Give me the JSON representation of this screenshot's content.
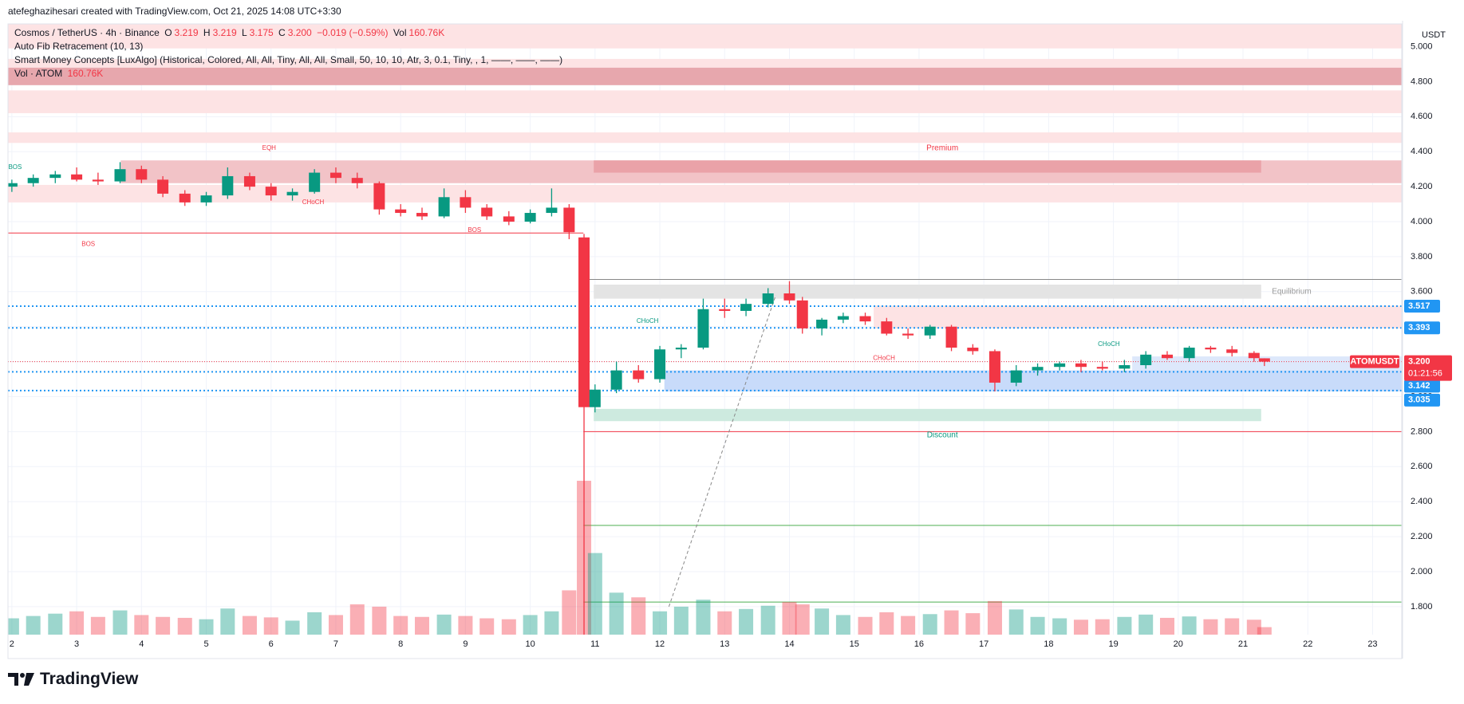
{
  "header": "atefeghazihesari created with TradingView.com, Oct 21, 2025 14:08 UTC+3:30",
  "legend": {
    "symbol": "Cosmos / TetherUS · 4h · Binance",
    "o_key": "O",
    "o": "3.219",
    "h_key": "H",
    "h": "3.219",
    "l_key": "L",
    "l": "3.175",
    "c_key": "C",
    "c": "3.200",
    "change": "−0.019 (−0.59%)",
    "vol_key": "Vol",
    "vol": "160.76K",
    "fib": "Auto Fib Retracement (10, 13)",
    "smc": "Smart Money Concepts [LuxAlgo] (Historical, Colored, All, All, Tiny, All, All, Small, 50, 10, 10, Atr, 3, 0.1, Tiny, , 1, ——, ——, ——)",
    "vol_line": "Vol · ATOM",
    "vol_line_value": "160.76K"
  },
  "footer": "TradingView",
  "chart_data": {
    "type": "candlestick",
    "currency": "USDT",
    "up_color": "#089981",
    "down_color": "#f23645",
    "xlim": [
      1.94,
      23.45
    ],
    "ylim": [
      1.64,
      5.13
    ],
    "xticks": [
      2,
      3,
      4,
      5,
      6,
      7,
      8,
      9,
      10,
      11,
      12,
      13,
      14,
      15,
      16,
      17,
      18,
      19,
      20,
      21,
      22,
      23
    ],
    "yticks": [
      {
        "value": 1.8,
        "label": "1.800"
      },
      {
        "value": 2.0,
        "label": "2.000"
      },
      {
        "value": 2.2,
        "label": "2.200"
      },
      {
        "value": 2.4,
        "label": "2.400"
      },
      {
        "value": 2.6,
        "label": "2.600"
      },
      {
        "value": 2.8,
        "label": "2.800"
      },
      {
        "value": 3.0,
        "label": "3.000"
      },
      {
        "value": 3.2,
        "label": "3.200"
      },
      {
        "value": 3.4,
        "label": "3.400"
      },
      {
        "value": 3.6,
        "label": "3.600"
      },
      {
        "value": 3.8,
        "label": "3.800"
      },
      {
        "value": 4.0,
        "label": "4.000"
      },
      {
        "value": 4.2,
        "label": "4.200"
      },
      {
        "value": 4.4,
        "label": "4.400"
      },
      {
        "value": 4.6,
        "label": "4.600"
      },
      {
        "value": 4.8,
        "label": "4.800"
      },
      {
        "value": 5.0,
        "label": "5.000"
      }
    ],
    "grid": true,
    "x": [
      2.0,
      2.33,
      2.67,
      3.0,
      3.33,
      3.67,
      4.0,
      4.33,
      4.67,
      5.0,
      5.33,
      5.67,
      6.0,
      6.33,
      6.67,
      7.0,
      7.33,
      7.67,
      8.0,
      8.33,
      8.67,
      9.0,
      9.33,
      9.67,
      10.0,
      10.33,
      10.6,
      10.83,
      11.0,
      11.33,
      11.67,
      12.0,
      12.33,
      12.67,
      13.0,
      13.33,
      13.67,
      14.0,
      14.2,
      14.5,
      14.83,
      15.17,
      15.5,
      15.83,
      16.17,
      16.5,
      16.83,
      17.17,
      17.5,
      17.83,
      18.17,
      18.5,
      18.83,
      19.17,
      19.5,
      19.83,
      20.17,
      20.5,
      20.83,
      21.17,
      21.33
    ],
    "open": [
      4.2,
      4.22,
      4.25,
      4.27,
      4.24,
      4.23,
      4.3,
      4.24,
      4.16,
      4.11,
      4.15,
      4.26,
      4.2,
      4.15,
      4.17,
      4.28,
      4.25,
      4.22,
      4.07,
      4.05,
      4.03,
      4.14,
      4.08,
      4.03,
      4.0,
      4.05,
      4.08,
      3.91,
      2.94,
      3.04,
      3.15,
      3.1,
      3.27,
      3.28,
      3.5,
      3.49,
      3.53,
      3.59,
      3.55,
      3.39,
      3.44,
      3.46,
      3.43,
      3.36,
      3.35,
      3.4,
      3.28,
      3.26,
      3.08,
      3.15,
      3.17,
      3.19,
      3.17,
      3.16,
      3.18,
      3.24,
      3.22,
      3.28,
      3.27,
      3.25,
      3.219
    ],
    "high": [
      4.24,
      4.27,
      4.29,
      4.31,
      4.28,
      4.34,
      4.32,
      4.26,
      4.18,
      4.17,
      4.31,
      4.28,
      4.22,
      4.19,
      4.3,
      4.31,
      4.28,
      4.23,
      4.1,
      4.08,
      4.19,
      4.18,
      4.1,
      4.06,
      4.07,
      4.19,
      4.1,
      3.93,
      3.07,
      3.2,
      3.18,
      3.29,
      3.3,
      3.56,
      3.56,
      3.56,
      3.62,
      3.66,
      3.57,
      3.45,
      3.48,
      3.48,
      3.45,
      3.39,
      3.41,
      3.41,
      3.3,
      3.27,
      3.18,
      3.19,
      3.2,
      3.21,
      3.2,
      3.21,
      3.26,
      3.26,
      3.29,
      3.29,
      3.29,
      3.26,
      3.219
    ],
    "low": [
      4.17,
      4.2,
      4.22,
      4.23,
      4.21,
      4.22,
      4.22,
      4.14,
      4.09,
      4.09,
      4.13,
      4.18,
      4.12,
      4.12,
      4.16,
      4.22,
      4.19,
      4.04,
      4.03,
      4.01,
      4.02,
      4.05,
      4.01,
      3.98,
      3.99,
      4.03,
      3.9,
      1.64,
      2.91,
      3.02,
      3.08,
      3.08,
      3.22,
      3.27,
      3.45,
      3.46,
      3.51,
      3.53,
      3.36,
      3.35,
      3.42,
      3.41,
      3.35,
      3.33,
      3.33,
      3.26,
      3.24,
      3.03,
      3.06,
      3.12,
      3.15,
      3.14,
      3.15,
      3.14,
      3.16,
      3.21,
      3.2,
      3.25,
      3.23,
      3.2,
      3.175
    ],
    "close": [
      4.22,
      4.25,
      4.27,
      4.24,
      4.23,
      4.3,
      4.24,
      4.16,
      4.11,
      4.15,
      4.26,
      4.2,
      4.15,
      4.17,
      4.28,
      4.25,
      4.22,
      4.07,
      4.05,
      4.03,
      4.14,
      4.08,
      4.03,
      4.0,
      4.05,
      4.08,
      3.94,
      2.94,
      3.04,
      3.15,
      3.1,
      3.27,
      3.28,
      3.5,
      3.49,
      3.53,
      3.59,
      3.55,
      3.39,
      3.44,
      3.46,
      3.43,
      3.36,
      3.35,
      3.4,
      3.28,
      3.26,
      3.08,
      3.15,
      3.17,
      3.19,
      3.17,
      3.16,
      3.18,
      3.24,
      3.22,
      3.28,
      3.27,
      3.25,
      3.22,
      3.2
    ],
    "volume": [
      350,
      400,
      450,
      500,
      380,
      520,
      420,
      380,
      360,
      330,
      560,
      400,
      370,
      300,
      480,
      420,
      650,
      600,
      400,
      380,
      430,
      400,
      350,
      330,
      420,
      500,
      950,
      3300,
      1750,
      900,
      800,
      500,
      600,
      750,
      500,
      550,
      620,
      700,
      650,
      560,
      420,
      380,
      480,
      400,
      440,
      520,
      460,
      720,
      540,
      380,
      350,
      320,
      330,
      380,
      430,
      360,
      390,
      330,
      350,
      320,
      160.76
    ],
    "zones": [
      {
        "x": [
          1.94,
          23.45
        ],
        "y": [
          4.99,
          5.13
        ],
        "color": "#fde3e4"
      },
      {
        "x": [
          1.94,
          23.45
        ],
        "y": [
          4.88,
          4.93
        ],
        "color": "#fde3e4"
      },
      {
        "x": [
          1.94,
          23.45
        ],
        "y": [
          4.78,
          4.88
        ],
        "color": "#e7a7ad"
      },
      {
        "x": [
          1.94,
          23.45
        ],
        "y": [
          4.62,
          4.75
        ],
        "color": "#fde3e4"
      },
      {
        "x": [
          1.94,
          23.45
        ],
        "y": [
          4.45,
          4.51
        ],
        "color": "#fde3e4"
      },
      {
        "x": [
          3.68,
          23.45
        ],
        "y": [
          4.22,
          4.35
        ],
        "color": "#f2c3c7"
      },
      {
        "x": [
          10.98,
          21.28
        ],
        "y": [
          4.28,
          4.35
        ],
        "color": "#eaa2a8"
      },
      {
        "x": [
          1.94,
          23.45
        ],
        "y": [
          4.11,
          4.21
        ],
        "color": "#fde3e4"
      },
      {
        "x": [
          10.98,
          21.28
        ],
        "y": [
          3.56,
          3.64
        ],
        "color": "#e4e4e4"
      },
      {
        "x": [
          15.3,
          23.45
        ],
        "y": [
          3.39,
          3.52
        ],
        "color": "#fde3e4"
      },
      {
        "x": [
          19.29,
          23.45
        ],
        "y": [
          3.15,
          3.23
        ],
        "color": "#dde8fb"
      },
      {
        "x": [
          12.07,
          23.45
        ],
        "y": [
          3.03,
          3.15
        ],
        "color": "#c8dbfa"
      },
      {
        "x": [
          10.98,
          21.28
        ],
        "y": [
          2.86,
          2.93
        ],
        "color": "#cdeadf"
      }
    ],
    "lines": [
      {
        "x": [
          1.94,
          10.82
        ],
        "y": [
          3.935,
          3.935
        ],
        "color": "#f23645"
      },
      {
        "x": [
          10.82,
          23.45
        ],
        "y": [
          3.67,
          3.67
        ],
        "color": "#888888"
      },
      {
        "x": [
          10.82,
          23.45
        ],
        "y": [
          2.8,
          2.8
        ],
        "color": "#f23645"
      },
      {
        "x": [
          10.82,
          23.45
        ],
        "y": [
          2.264,
          2.264
        ],
        "color": "#4caf50"
      },
      {
        "x": [
          10.82,
          23.45
        ],
        "y": [
          1.826,
          1.826
        ],
        "color": "#4caf50"
      },
      {
        "x": [
          12.14,
          13.79
        ],
        "y": [
          1.8,
          3.58
        ],
        "color": "#888888",
        "dash": true
      }
    ],
    "annotations": [
      {
        "text": "Premium",
        "color": "#f23645"
      },
      {
        "text": "Equilibrium",
        "color": "#999999"
      },
      {
        "text": "Discount",
        "color": "#089981"
      },
      {
        "text": "BOS",
        "color": "#f23645"
      },
      {
        "text": "BOS",
        "color": "#f23645"
      },
      {
        "text": "BOS",
        "color": "#089981"
      },
      {
        "text": "EQH",
        "color": "#f23645"
      },
      {
        "text": "CHoCH",
        "color": "#f23645"
      },
      {
        "text": "CHoCH",
        "color": "#089981"
      },
      {
        "text": "CHoCH",
        "color": "#f23645"
      },
      {
        "text": "CHoCH",
        "color": "#089981"
      }
    ],
    "price_labels": [
      {
        "value": 3.517,
        "color": "#2196f3"
      },
      {
        "value": 3.393,
        "color": "#2196f3"
      },
      {
        "value": 3.142,
        "color": "#2196f3"
      },
      {
        "value": 3.035,
        "color": "#2196f3"
      }
    ],
    "last_price": {
      "value": 3.2,
      "label": "3.200"
    },
    "symbol": "ATOMUSDT",
    "countdown": "01:21:56"
  }
}
